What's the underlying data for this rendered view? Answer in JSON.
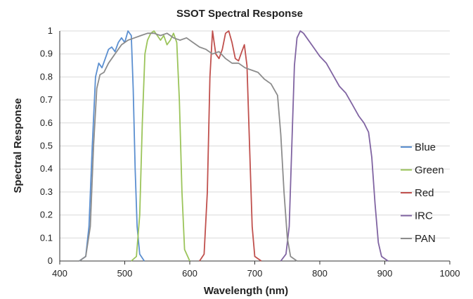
{
  "chart_data": {
    "type": "line",
    "title": "SSOT Spectral Response",
    "xlabel": "Wavelength (nm)",
    "ylabel": "Spectral Response",
    "xlim": [
      400,
      1000
    ],
    "ylim": [
      0,
      1
    ],
    "x_ticks": [
      "400",
      "500",
      "600",
      "700",
      "800",
      "900",
      "1000"
    ],
    "y_ticks": [
      "0",
      "0.1",
      "0.2",
      "0.3",
      "0.4",
      "0.5",
      "0.6",
      "0.7",
      "0.8",
      "0.9",
      "1"
    ],
    "grid": true,
    "legend_position": "right",
    "series": [
      {
        "name": "Blue",
        "color": "#5b8fd0",
        "points": [
          [
            430,
            0
          ],
          [
            440,
            0.02
          ],
          [
            445,
            0.15
          ],
          [
            450,
            0.5
          ],
          [
            455,
            0.8
          ],
          [
            460,
            0.86
          ],
          [
            465,
            0.84
          ],
          [
            470,
            0.88
          ],
          [
            475,
            0.92
          ],
          [
            480,
            0.93
          ],
          [
            485,
            0.91
          ],
          [
            490,
            0.95
          ],
          [
            495,
            0.97
          ],
          [
            500,
            0.95
          ],
          [
            505,
            1.0
          ],
          [
            510,
            0.98
          ],
          [
            513,
            0.75
          ],
          [
            516,
            0.4
          ],
          [
            519,
            0.15
          ],
          [
            523,
            0.03
          ],
          [
            530,
            0
          ]
        ]
      },
      {
        "name": "Green",
        "color": "#9bc45a",
        "points": [
          [
            510,
            0
          ],
          [
            518,
            0.02
          ],
          [
            523,
            0.2
          ],
          [
            527,
            0.6
          ],
          [
            531,
            0.9
          ],
          [
            535,
            0.96
          ],
          [
            540,
            0.99
          ],
          [
            545,
            1.0
          ],
          [
            550,
            0.98
          ],
          [
            555,
            0.96
          ],
          [
            560,
            0.98
          ],
          [
            565,
            0.94
          ],
          [
            570,
            0.96
          ],
          [
            575,
            0.99
          ],
          [
            580,
            0.95
          ],
          [
            584,
            0.7
          ],
          [
            588,
            0.3
          ],
          [
            592,
            0.05
          ],
          [
            600,
            0
          ]
        ]
      },
      {
        "name": "Red",
        "color": "#c0504d",
        "points": [
          [
            615,
            0
          ],
          [
            622,
            0.03
          ],
          [
            627,
            0.3
          ],
          [
            631,
            0.8
          ],
          [
            635,
            1.0
          ],
          [
            640,
            0.9
          ],
          [
            645,
            0.88
          ],
          [
            650,
            0.92
          ],
          [
            655,
            0.99
          ],
          [
            660,
            1.0
          ],
          [
            665,
            0.95
          ],
          [
            670,
            0.88
          ],
          [
            675,
            0.87
          ],
          [
            680,
            0.91
          ],
          [
            684,
            0.94
          ],
          [
            688,
            0.85
          ],
          [
            692,
            0.5
          ],
          [
            696,
            0.15
          ],
          [
            700,
            0.02
          ],
          [
            710,
            0
          ]
        ]
      },
      {
        "name": "IRC",
        "color": "#8064a2",
        "points": [
          [
            740,
            0
          ],
          [
            748,
            0.03
          ],
          [
            753,
            0.15
          ],
          [
            757,
            0.5
          ],
          [
            761,
            0.85
          ],
          [
            765,
            0.97
          ],
          [
            770,
            1.0
          ],
          [
            775,
            0.99
          ],
          [
            780,
            0.97
          ],
          [
            790,
            0.93
          ],
          [
            800,
            0.89
          ],
          [
            810,
            0.86
          ],
          [
            820,
            0.81
          ],
          [
            830,
            0.76
          ],
          [
            840,
            0.73
          ],
          [
            850,
            0.68
          ],
          [
            860,
            0.63
          ],
          [
            868,
            0.6
          ],
          [
            875,
            0.56
          ],
          [
            880,
            0.45
          ],
          [
            885,
            0.25
          ],
          [
            890,
            0.08
          ],
          [
            895,
            0.02
          ],
          [
            905,
            0
          ]
        ]
      },
      {
        "name": "PAN",
        "color": "#8c8c8c",
        "points": [
          [
            430,
            0
          ],
          [
            440,
            0.02
          ],
          [
            447,
            0.15
          ],
          [
            452,
            0.5
          ],
          [
            457,
            0.75
          ],
          [
            462,
            0.81
          ],
          [
            468,
            0.82
          ],
          [
            475,
            0.86
          ],
          [
            485,
            0.9
          ],
          [
            495,
            0.94
          ],
          [
            505,
            0.96
          ],
          [
            515,
            0.97
          ],
          [
            525,
            0.98
          ],
          [
            535,
            0.99
          ],
          [
            545,
            0.99
          ],
          [
            555,
            0.98
          ],
          [
            565,
            0.99
          ],
          [
            575,
            0.97
          ],
          [
            585,
            0.96
          ],
          [
            595,
            0.97
          ],
          [
            605,
            0.95
          ],
          [
            615,
            0.93
          ],
          [
            625,
            0.92
          ],
          [
            635,
            0.9
          ],
          [
            645,
            0.91
          ],
          [
            655,
            0.88
          ],
          [
            665,
            0.86
          ],
          [
            675,
            0.86
          ],
          [
            685,
            0.84
          ],
          [
            695,
            0.83
          ],
          [
            705,
            0.82
          ],
          [
            715,
            0.79
          ],
          [
            725,
            0.77
          ],
          [
            735,
            0.72
          ],
          [
            740,
            0.55
          ],
          [
            745,
            0.3
          ],
          [
            750,
            0.1
          ],
          [
            755,
            0.02
          ],
          [
            765,
            0
          ]
        ]
      }
    ]
  }
}
